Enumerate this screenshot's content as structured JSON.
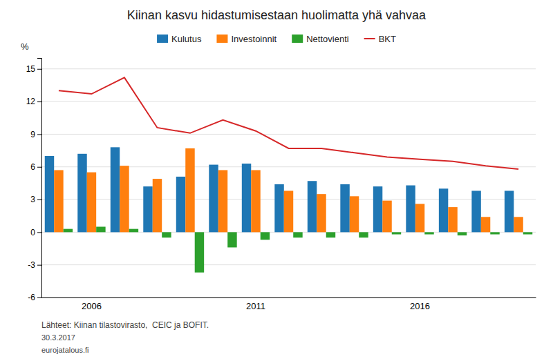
{
  "chart_data": {
    "type": "bar",
    "title": "Kiinan kasvu hidastumisestaan huolimatta yhä vahvaa",
    "ylabel": "%",
    "categories": [
      null,
      "2006",
      null,
      null,
      null,
      null,
      "2011",
      null,
      null,
      null,
      null,
      "2016",
      null,
      null,
      null
    ],
    "series": [
      {
        "name": "Kulutus",
        "type": "bar",
        "values": [
          7.0,
          7.2,
          7.8,
          4.2,
          5.1,
          6.2,
          6.3,
          4.4,
          4.7,
          4.4,
          4.2,
          4.3,
          4.0,
          3.8,
          3.8
        ]
      },
      {
        "name": "Investoinnit",
        "type": "bar",
        "values": [
          5.7,
          5.5,
          6.1,
          4.9,
          7.7,
          5.7,
          5.7,
          3.8,
          3.5,
          3.3,
          2.9,
          2.6,
          2.3,
          1.4,
          1.4
        ]
      },
      {
        "name": "Nettovienti",
        "type": "bar",
        "values": [
          0.3,
          0.5,
          0.3,
          -0.5,
          -3.7,
          -1.4,
          -0.7,
          -0.5,
          -0.5,
          -0.5,
          -0.2,
          -0.2,
          -0.3,
          -0.2,
          -0.2
        ]
      },
      {
        "name": "BKT",
        "type": "line",
        "values": [
          13.0,
          12.7,
          14.2,
          9.6,
          9.1,
          10.3,
          9.3,
          7.7,
          7.7,
          7.3,
          6.9,
          6.7,
          6.5,
          6.1,
          5.8
        ]
      }
    ],
    "ylim": [
      -6,
      16
    ],
    "yticks": [
      -6,
      -3,
      0,
      3,
      6,
      9,
      12,
      15
    ],
    "grid": true,
    "legend": "top",
    "annotations": [
      "Lähteet: Kiinan tilastovirasto,  CEIC ja BOFIT.",
      "30.3.2017",
      "eurojatalous.fi"
    ]
  }
}
